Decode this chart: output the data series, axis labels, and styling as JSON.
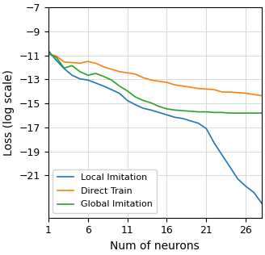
{
  "x": [
    1,
    2,
    3,
    4,
    5,
    6,
    7,
    8,
    9,
    10,
    11,
    12,
    13,
    14,
    15,
    16,
    17,
    18,
    19,
    20,
    21,
    22,
    23,
    24,
    25,
    26,
    27,
    28
  ],
  "local_imitation": [
    -10.6,
    -11.4,
    -12.1,
    -12.65,
    -12.95,
    -13.05,
    -13.3,
    -13.55,
    -13.85,
    -14.15,
    -14.75,
    -15.1,
    -15.4,
    -15.55,
    -15.75,
    -15.95,
    -16.15,
    -16.25,
    -16.45,
    -16.65,
    -17.1,
    -18.3,
    -19.3,
    -20.3,
    -21.3,
    -21.9,
    -22.4,
    -23.3
  ],
  "direct_train": [
    -10.85,
    -11.05,
    -11.55,
    -11.6,
    -11.65,
    -11.5,
    -11.65,
    -11.95,
    -12.15,
    -12.35,
    -12.45,
    -12.55,
    -12.85,
    -13.05,
    -13.15,
    -13.25,
    -13.45,
    -13.55,
    -13.65,
    -13.75,
    -13.8,
    -13.85,
    -14.05,
    -14.05,
    -14.1,
    -14.15,
    -14.25,
    -14.35
  ],
  "global_imitation": [
    -10.85,
    -11.15,
    -12.05,
    -11.85,
    -12.35,
    -12.65,
    -12.5,
    -12.75,
    -13.05,
    -13.55,
    -13.95,
    -14.45,
    -14.75,
    -14.95,
    -15.25,
    -15.45,
    -15.55,
    -15.6,
    -15.65,
    -15.7,
    -15.7,
    -15.75,
    -15.75,
    -15.8,
    -15.8,
    -15.8,
    -15.8,
    -15.8
  ],
  "color_local": "#1f77b4",
  "color_direct": "#ff7f0e",
  "color_global": "#2ca02c",
  "ylabel": "Loss (log scale)",
  "xlabel": "Num of neurons",
  "ylim": [
    -24.5,
    -7
  ],
  "xlim": [
    1,
    28
  ],
  "yticks": [
    -7,
    -9,
    -11,
    -13,
    -15,
    -17,
    -19,
    -21
  ],
  "xticks": [
    1,
    6,
    11,
    16,
    21,
    26
  ],
  "legend_labels": [
    "Local Imitation",
    "Direct Train",
    "Global Imitation"
  ],
  "figsize": [
    3.28,
    3.16
  ],
  "dpi": 100
}
